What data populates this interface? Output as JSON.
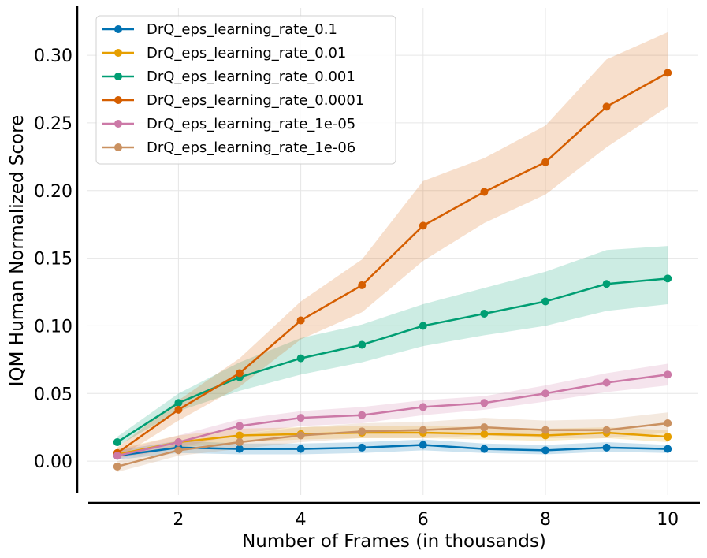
{
  "chart_data": {
    "type": "line",
    "title": "",
    "xlabel": "Number of Frames (in thousands)",
    "ylabel": "IQM Human Normalized Score",
    "xlim": [
      0.5,
      10.5
    ],
    "ylim": [
      -0.025,
      0.335
    ],
    "x_ticks": [
      2,
      4,
      6,
      8,
      10
    ],
    "x_tick_labels": [
      "2",
      "4",
      "6",
      "8",
      "10"
    ],
    "y_ticks": [
      0.0,
      0.05,
      0.1,
      0.15,
      0.2,
      0.25,
      0.3
    ],
    "y_tick_labels": [
      "0.00",
      "0.05",
      "0.10",
      "0.15",
      "0.20",
      "0.25",
      "0.30"
    ],
    "grid": true,
    "legend_position": "top-left",
    "x": [
      1,
      2,
      3,
      4,
      5,
      6,
      7,
      8,
      9,
      10
    ],
    "series": [
      {
        "name": "DrQ_eps_learning_rate_0.1",
        "color": "#0072B2",
        "values": [
          0.004,
          0.01,
          0.009,
          0.009,
          0.01,
          0.012,
          0.009,
          0.008,
          0.01,
          0.009
        ],
        "lower": [
          0.001,
          0.006,
          0.005,
          0.005,
          0.006,
          0.008,
          0.006,
          0.005,
          0.007,
          0.006
        ],
        "upper": [
          0.008,
          0.015,
          0.013,
          0.013,
          0.014,
          0.016,
          0.013,
          0.012,
          0.014,
          0.012
        ]
      },
      {
        "name": "DrQ_eps_learning_rate_0.01",
        "color": "#E69F00",
        "values": [
          0.005,
          0.014,
          0.019,
          0.02,
          0.021,
          0.021,
          0.02,
          0.019,
          0.021,
          0.018
        ],
        "lower": [
          0.002,
          0.01,
          0.014,
          0.016,
          0.017,
          0.017,
          0.016,
          0.015,
          0.017,
          0.014
        ],
        "upper": [
          0.009,
          0.019,
          0.024,
          0.025,
          0.026,
          0.026,
          0.025,
          0.024,
          0.025,
          0.023
        ]
      },
      {
        "name": "DrQ_eps_learning_rate_0.001",
        "color": "#009E73",
        "values": [
          0.014,
          0.043,
          0.062,
          0.076,
          0.086,
          0.1,
          0.109,
          0.118,
          0.131,
          0.135
        ],
        "lower": [
          0.011,
          0.037,
          0.052,
          0.064,
          0.073,
          0.085,
          0.093,
          0.1,
          0.111,
          0.116
        ],
        "upper": [
          0.018,
          0.05,
          0.073,
          0.091,
          0.101,
          0.116,
          0.128,
          0.14,
          0.156,
          0.159
        ]
      },
      {
        "name": "DrQ_eps_learning_rate_0.0001",
        "color": "#D55E00",
        "values": [
          0.006,
          0.038,
          0.065,
          0.104,
          0.13,
          0.174,
          0.199,
          0.221,
          0.262,
          0.287
        ],
        "lower": [
          0.002,
          0.03,
          0.055,
          0.09,
          0.11,
          0.148,
          0.176,
          0.197,
          0.232,
          0.262
        ],
        "upper": [
          0.01,
          0.045,
          0.076,
          0.118,
          0.149,
          0.207,
          0.224,
          0.248,
          0.297,
          0.317
        ]
      },
      {
        "name": "DrQ_eps_learning_rate_1e-05",
        "color": "#CC79A7",
        "values": [
          0.004,
          0.014,
          0.026,
          0.032,
          0.034,
          0.04,
          0.043,
          0.05,
          0.058,
          0.064
        ],
        "lower": [
          0.001,
          0.01,
          0.02,
          0.026,
          0.028,
          0.034,
          0.038,
          0.044,
          0.051,
          0.056
        ],
        "upper": [
          0.008,
          0.019,
          0.031,
          0.037,
          0.04,
          0.045,
          0.048,
          0.056,
          0.065,
          0.072
        ]
      },
      {
        "name": "DrQ_eps_learning_rate_1e-06",
        "color": "#CA9161",
        "values": [
          -0.004,
          0.008,
          0.014,
          0.019,
          0.022,
          0.023,
          0.025,
          0.023,
          0.023,
          0.028
        ],
        "lower": [
          -0.008,
          0.004,
          0.009,
          0.014,
          0.017,
          0.017,
          0.019,
          0.017,
          0.017,
          0.021
        ],
        "upper": [
          0.0,
          0.013,
          0.02,
          0.025,
          0.028,
          0.029,
          0.032,
          0.03,
          0.031,
          0.036
        ]
      }
    ]
  }
}
